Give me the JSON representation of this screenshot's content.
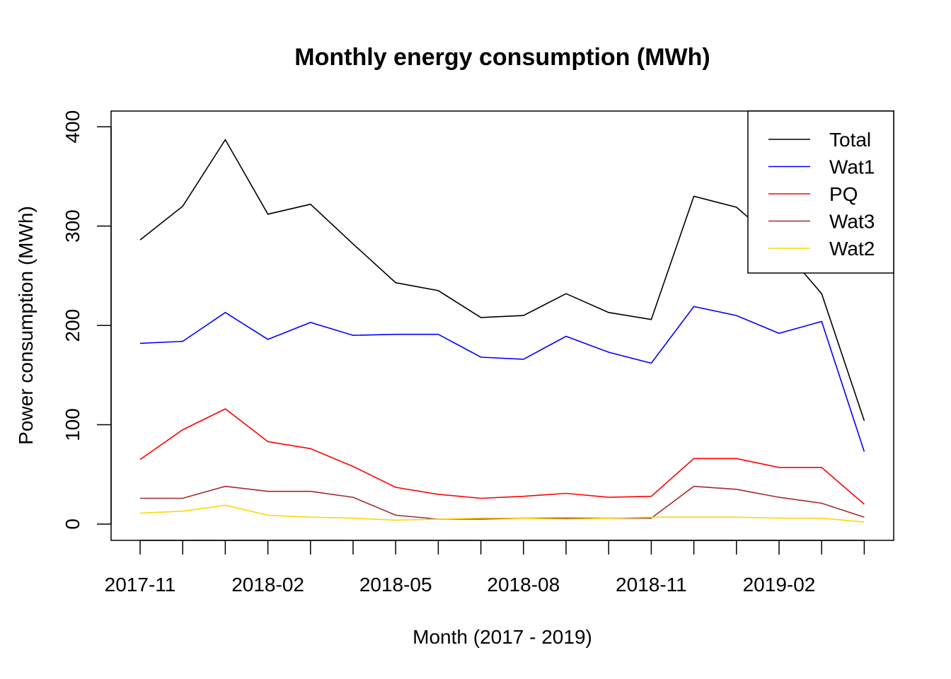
{
  "chart_data": {
    "type": "line",
    "title": "Monthly energy consumption (MWh)",
    "xlabel": "Month (2017 - 2019)",
    "ylabel": "Power consumption (MWh)",
    "x": [
      "2017-11",
      "2017-12",
      "2018-01",
      "2018-02",
      "2018-03",
      "2018-04",
      "2018-05",
      "2018-06",
      "2018-07",
      "2018-08",
      "2018-09",
      "2018-10",
      "2018-11",
      "2018-12",
      "2019-01",
      "2019-02",
      "2019-03",
      "2019-04"
    ],
    "x_tick_labels": [
      "2017-11",
      "2018-02",
      "2018-05",
      "2018-08",
      "2018-11",
      "2019-02"
    ],
    "y_ticks": [
      0,
      100,
      200,
      300,
      400
    ],
    "ylim": [
      0,
      400
    ],
    "grid": false,
    "legend_position": "top-right",
    "series": [
      {
        "name": "Total",
        "color": "#000000",
        "values": [
          286,
          320,
          387,
          312,
          322,
          282,
          243,
          235,
          208,
          210,
          232,
          213,
          206,
          330,
          319,
          282,
          232,
          104
        ]
      },
      {
        "name": "Wat1",
        "color": "#0000ff",
        "values": [
          182,
          184,
          213,
          186,
          203,
          190,
          191,
          191,
          168,
          166,
          189,
          173,
          162,
          219,
          210,
          192,
          204,
          73
        ]
      },
      {
        "name": "PQ",
        "color": "#ff0000",
        "values": [
          65,
          95,
          116,
          83,
          76,
          58,
          37,
          30,
          26,
          28,
          31,
          27,
          28,
          66,
          66,
          57,
          57,
          20
        ]
      },
      {
        "name": "Wat3",
        "color": "#a52a2a",
        "values": [
          26,
          26,
          38,
          33,
          33,
          27,
          9,
          5,
          5,
          6,
          6,
          6,
          6,
          38,
          35,
          27,
          21,
          7
        ]
      },
      {
        "name": "Wat2",
        "color": "#ffd700",
        "values": [
          11,
          13,
          19,
          9,
          7,
          6,
          4,
          5,
          6,
          6,
          5,
          6,
          7,
          7,
          7,
          6,
          6,
          2
        ]
      }
    ]
  }
}
